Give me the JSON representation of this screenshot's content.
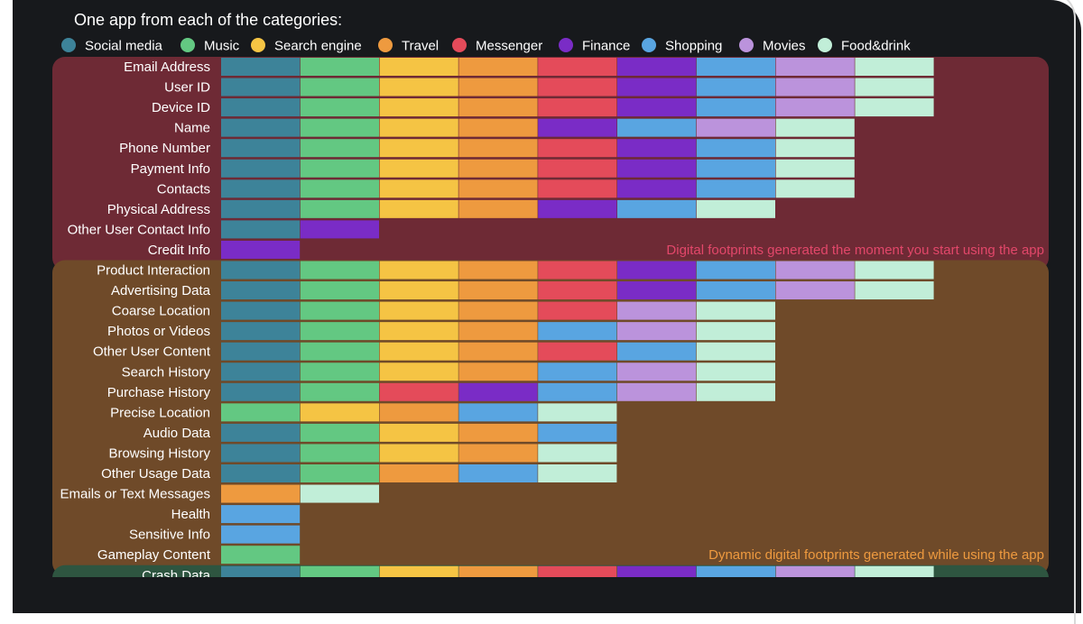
{
  "chart_data": {
    "type": "heatmap",
    "title": "One app from each of the categories:",
    "legend": {
      "placement": "top",
      "entries": [
        {
          "name": "Social media",
          "color": "#3d8399"
        },
        {
          "name": "Music",
          "color": "#63c882"
        },
        {
          "name": "Search engine",
          "color": "#f5c444"
        },
        {
          "name": "Travel",
          "color": "#ee9a3f"
        },
        {
          "name": "Messenger",
          "color": "#e44b5a"
        },
        {
          "name": "Finance",
          "color": "#7a2cc6"
        },
        {
          "name": "Shopping",
          "color": "#59a5e1"
        },
        {
          "name": "Movies",
          "color": "#bb93dc"
        },
        {
          "name": "Food&drink",
          "color": "#c1eed8"
        }
      ]
    },
    "sections": [
      {
        "note": "Digital footprints generated the moment you start using the app",
        "background": "#6e2a35",
        "note_color": "#e2476a",
        "rows": [
          {
            "label": "Email Address",
            "apps": [
              "Social media",
              "Music",
              "Search engine",
              "Travel",
              "Messenger",
              "Finance",
              "Shopping",
              "Movies",
              "Food&drink"
            ]
          },
          {
            "label": "User ID",
            "apps": [
              "Social media",
              "Music",
              "Search engine",
              "Travel",
              "Messenger",
              "Finance",
              "Shopping",
              "Movies",
              "Food&drink"
            ]
          },
          {
            "label": "Device ID",
            "apps": [
              "Social media",
              "Music",
              "Search engine",
              "Travel",
              "Messenger",
              "Finance",
              "Shopping",
              "Movies",
              "Food&drink"
            ]
          },
          {
            "label": "Name",
            "apps": [
              "Social media",
              "Music",
              "Search engine",
              "Travel",
              "Finance",
              "Shopping",
              "Movies",
              "Food&drink"
            ]
          },
          {
            "label": "Phone Number",
            "apps": [
              "Social media",
              "Music",
              "Search engine",
              "Travel",
              "Messenger",
              "Finance",
              "Shopping",
              "Food&drink"
            ]
          },
          {
            "label": "Payment Info",
            "apps": [
              "Social media",
              "Music",
              "Search engine",
              "Travel",
              "Messenger",
              "Finance",
              "Shopping",
              "Food&drink"
            ]
          },
          {
            "label": "Contacts",
            "apps": [
              "Social media",
              "Music",
              "Search engine",
              "Travel",
              "Messenger",
              "Finance",
              "Shopping",
              "Food&drink"
            ]
          },
          {
            "label": "Physical Address",
            "apps": [
              "Social media",
              "Music",
              "Search engine",
              "Travel",
              "Finance",
              "Shopping",
              "Food&drink"
            ]
          },
          {
            "label": "Other User Contact Info",
            "apps": [
              "Social media",
              "Finance"
            ]
          },
          {
            "label": "Credit Info",
            "apps": [
              "Finance"
            ]
          }
        ]
      },
      {
        "note": "Dynamic digital footprints generated while using the app",
        "background": "#6f4a29",
        "note_color": "#ee9a3f",
        "rows": [
          {
            "label": "Product Interaction",
            "apps": [
              "Social media",
              "Music",
              "Search engine",
              "Travel",
              "Messenger",
              "Finance",
              "Shopping",
              "Movies",
              "Food&drink"
            ]
          },
          {
            "label": "Advertising Data",
            "apps": [
              "Social media",
              "Music",
              "Search engine",
              "Travel",
              "Messenger",
              "Finance",
              "Shopping",
              "Movies",
              "Food&drink"
            ]
          },
          {
            "label": "Coarse Location",
            "apps": [
              "Social media",
              "Music",
              "Search engine",
              "Travel",
              "Messenger",
              "Movies",
              "Food&drink"
            ]
          },
          {
            "label": "Photos or Videos",
            "apps": [
              "Social media",
              "Music",
              "Search engine",
              "Travel",
              "Shopping",
              "Movies",
              "Food&drink"
            ]
          },
          {
            "label": "Other User Content",
            "apps": [
              "Social media",
              "Music",
              "Search engine",
              "Travel",
              "Messenger",
              "Shopping",
              "Food&drink"
            ]
          },
          {
            "label": "Search History",
            "apps": [
              "Social media",
              "Music",
              "Search engine",
              "Travel",
              "Shopping",
              "Movies",
              "Food&drink"
            ]
          },
          {
            "label": "Purchase History",
            "apps": [
              "Social media",
              "Music",
              "Messenger",
              "Finance",
              "Shopping",
              "Movies",
              "Food&drink"
            ]
          },
          {
            "label": "Precise Location",
            "apps": [
              "Music",
              "Search engine",
              "Travel",
              "Shopping",
              "Food&drink"
            ]
          },
          {
            "label": "Audio Data",
            "apps": [
              "Social media",
              "Music",
              "Search engine",
              "Travel",
              "Shopping"
            ]
          },
          {
            "label": "Browsing History",
            "apps": [
              "Social media",
              "Music",
              "Search engine",
              "Travel",
              "Food&drink"
            ]
          },
          {
            "label": "Other Usage Data",
            "apps": [
              "Social media",
              "Music",
              "Travel",
              "Shopping",
              "Food&drink"
            ]
          },
          {
            "label": "Emails or Text Messages",
            "apps": [
              "Travel",
              "Food&drink"
            ]
          },
          {
            "label": "Health",
            "apps": [
              "Shopping"
            ]
          },
          {
            "label": "Sensitive Info",
            "apps": [
              "Shopping"
            ]
          },
          {
            "label": "Gameplay Content",
            "apps": [
              "Music"
            ]
          }
        ]
      },
      {
        "note": "",
        "background": "#2e5540",
        "note_color": "#63c882",
        "rows": [
          {
            "label": "Crash Data",
            "apps": [
              "Social media",
              "Music",
              "Search engine",
              "Travel",
              "Messenger",
              "Finance",
              "Shopping",
              "Movies",
              "Food&drink"
            ]
          }
        ]
      }
    ]
  }
}
